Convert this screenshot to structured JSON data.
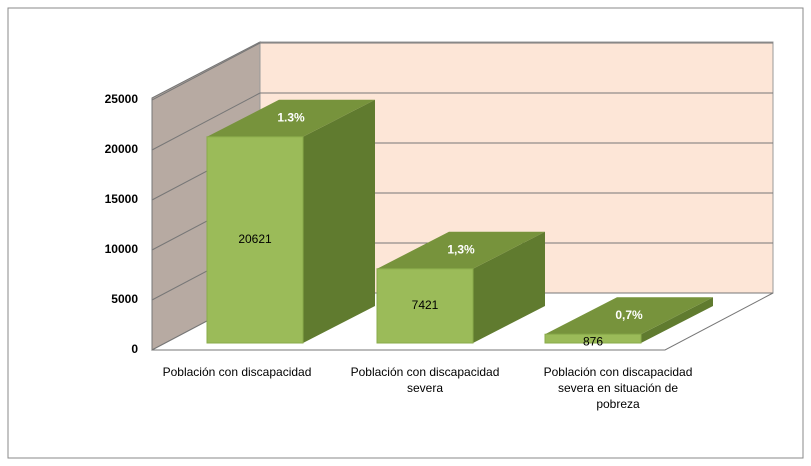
{
  "chart_data": {
    "type": "bar3d",
    "categories": [
      "Población con discapacidad",
      "Población con discapacidad severa",
      "Población con discapacidad severa en situación de pobreza"
    ],
    "values": [
      20621,
      7421,
      876
    ],
    "top_labels": [
      "1.3%",
      "1,3%",
      "0,7%"
    ],
    "color": "#9bbb59",
    "ylim": [
      0,
      25000
    ],
    "yticks": [
      0,
      5000,
      10000,
      15000,
      20000,
      25000
    ],
    "grid": true
  }
}
